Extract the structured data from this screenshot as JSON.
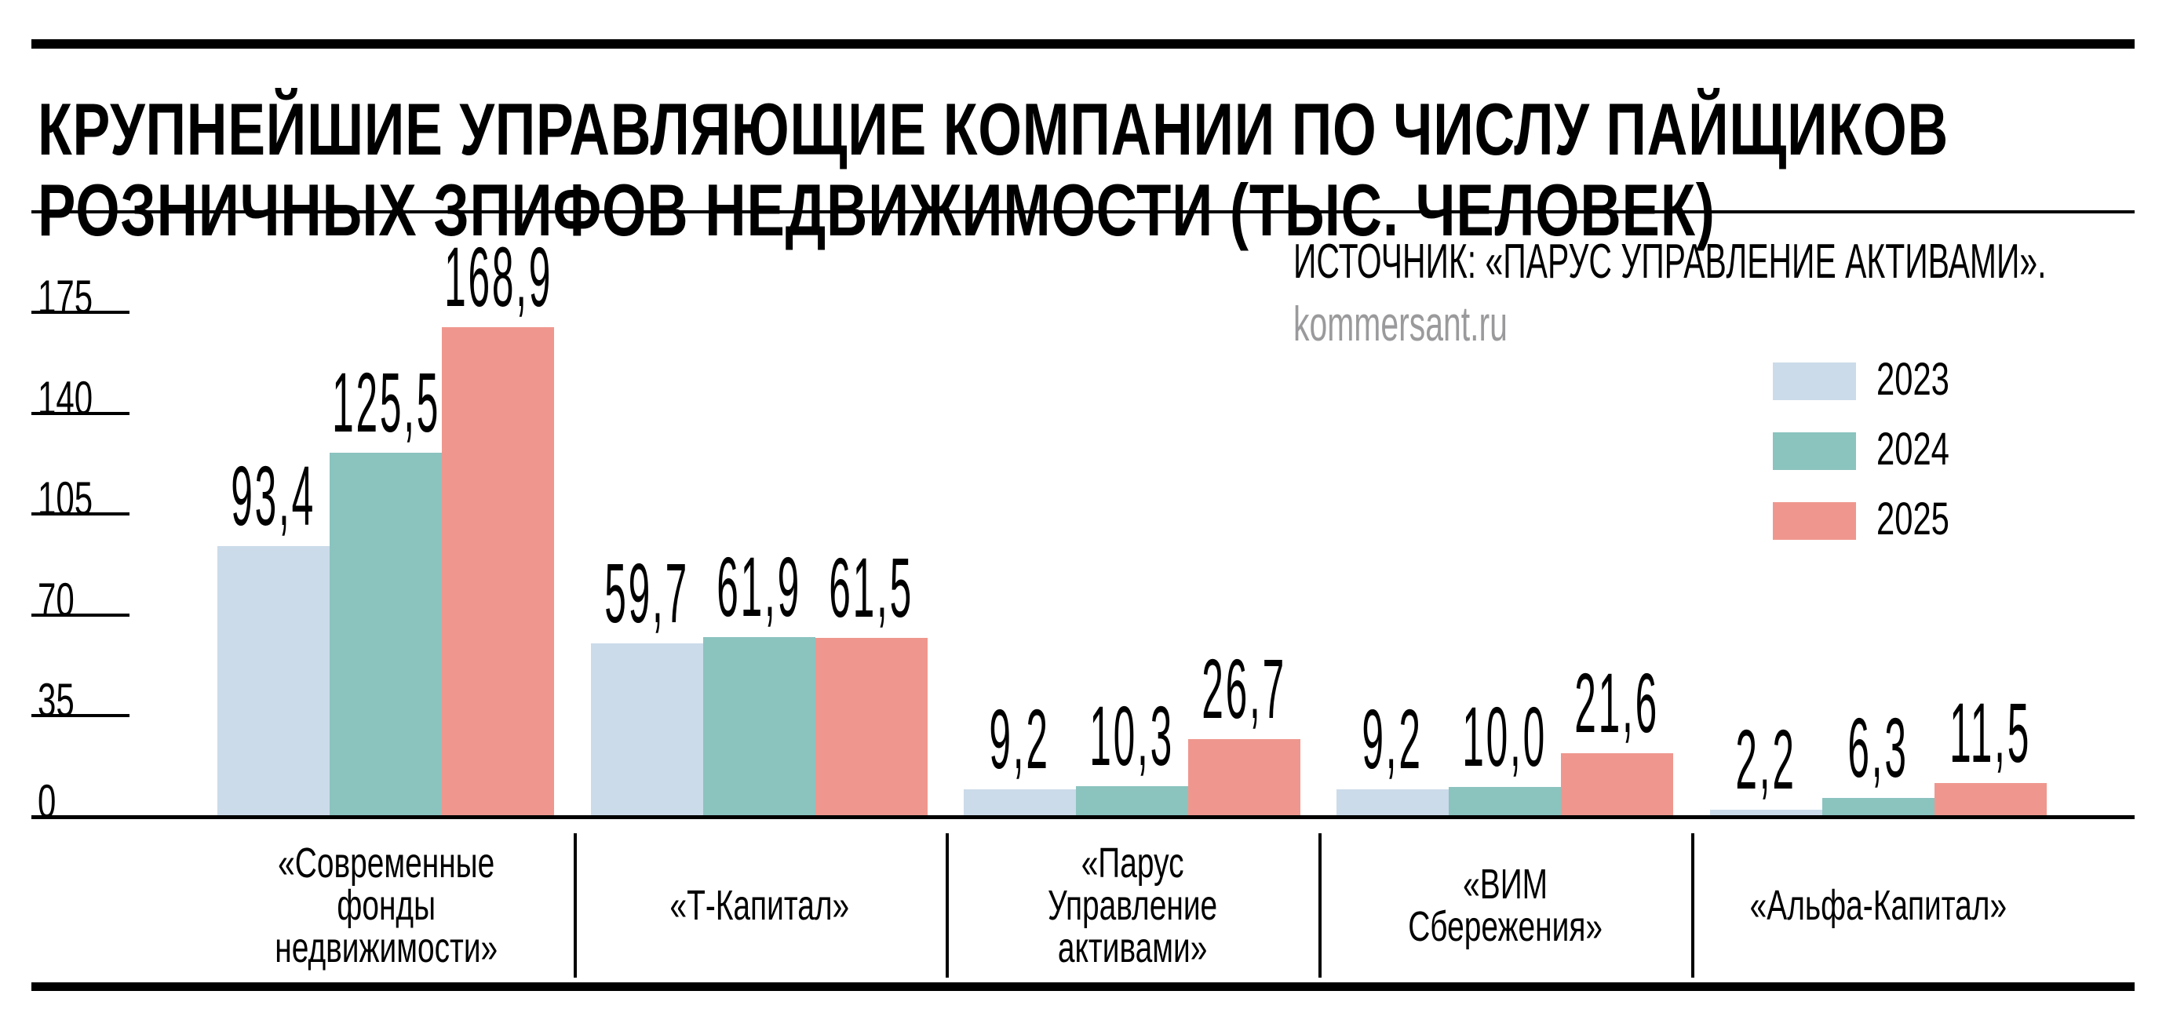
{
  "header": {
    "title_line1": "КРУПНЕЙШИЕ УПРАВЛЯЮЩИЕ КОМПАНИИ ПО ЧИСЛУ ПАЙЩИКОВ",
    "title_line2": "РОЗНИЧНЫХ ЗПИФОВ НЕДВИЖИМОСТИ (ТЫС. ЧЕЛОВЕК)"
  },
  "source": {
    "text": "ИСТОЧНИК: «ПАРУС УПРАВЛЕНИЕ АКТИВАМИ».",
    "site": "kommersant.ru"
  },
  "colors": {
    "2023": "#cbdbea",
    "2024": "#8bc3bf",
    "2025": "#ef978e",
    "site_text": "#9a9a9c"
  },
  "legend": [
    {
      "label": "2023",
      "color": "#cbdbea"
    },
    {
      "label": "2024",
      "color": "#8bc3bf"
    },
    {
      "label": "2025",
      "color": "#ef978e"
    }
  ],
  "yaxis": {
    "ticks": [
      "175",
      "140",
      "105",
      "70",
      "35",
      "0"
    ]
  },
  "categories": [
    {
      "lines": [
        "«Современные",
        "фонды",
        "недвижимости»"
      ],
      "values": [
        "93,4",
        "125,5",
        "168,9"
      ]
    },
    {
      "lines": [
        "«Т-Капитал»"
      ],
      "values": [
        "59,7",
        "61,9",
        "61,5"
      ]
    },
    {
      "lines": [
        "«Парус",
        "Управление",
        "активами»"
      ],
      "values": [
        "9,2",
        "10,3",
        "26,7"
      ]
    },
    {
      "lines": [
        "«ВИМ",
        "Сбережения»"
      ],
      "values": [
        "9,2",
        "10,0",
        "21,6"
      ]
    },
    {
      "lines": [
        "«Альфа-Капитал»"
      ],
      "values": [
        "2,2",
        "6,3",
        "11,5"
      ]
    }
  ],
  "chart_data": {
    "type": "bar",
    "title": "Крупнейшие управляющие компании по числу пайщиков розничных ЗПИФов недвижимости (тыс. человек)",
    "source": "ИСТОЧНИК: «ПАРУС УПРАВЛЕНИЕ АКТИВАМИ».",
    "categories": [
      "«Современные фонды недвижимости»",
      "«Т-Капитал»",
      "«Парус Управление активами»",
      "«ВИМ Сбережения»",
      "«Альфа-Капитал»"
    ],
    "series": [
      {
        "name": "2023",
        "color": "#cbdbea",
        "values": [
          93.4,
          59.7,
          9.2,
          9.2,
          2.2
        ]
      },
      {
        "name": "2024",
        "color": "#8bc3bf",
        "values": [
          125.5,
          61.9,
          10.3,
          10.0,
          6.3
        ]
      },
      {
        "name": "2025",
        "color": "#ef978e",
        "values": [
          168.9,
          61.5,
          26.7,
          21.6,
          11.5
        ]
      }
    ],
    "xlabel": "",
    "ylabel": "тыс. человек",
    "yticks": [
      0,
      35,
      70,
      105,
      140,
      175
    ],
    "ylim": [
      0,
      175
    ],
    "grid": false,
    "legend_position": "top-right",
    "data_labels": true
  }
}
